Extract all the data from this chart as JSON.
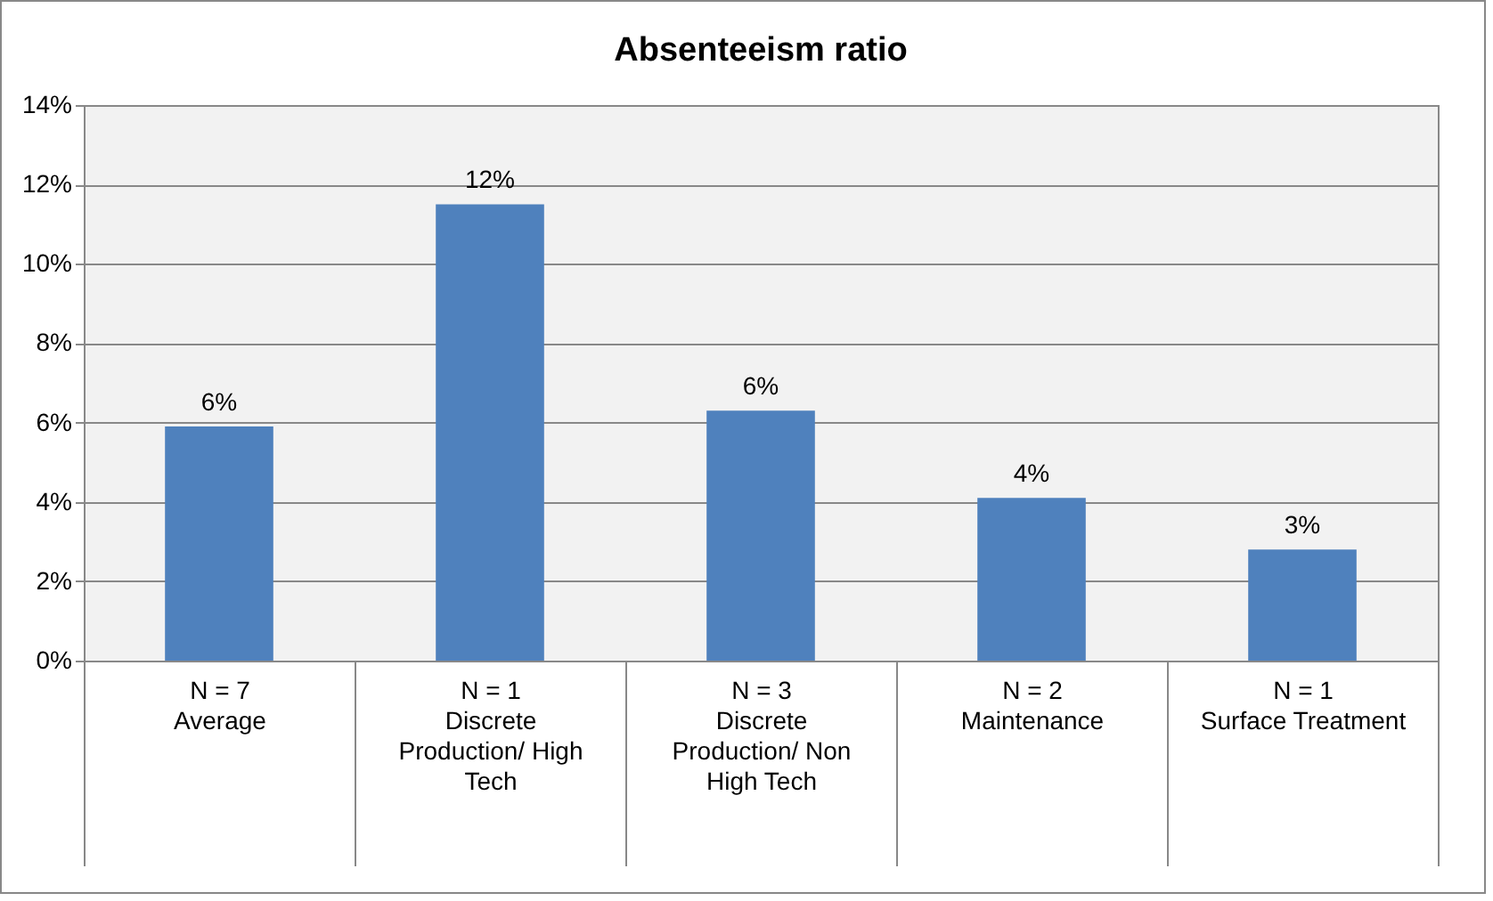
{
  "chart_data": {
    "type": "bar",
    "title": "Absenteeism ratio",
    "categories": [
      "Average",
      "Discrete Production/ High Tech",
      "Discrete Production/ Non High Tech",
      "Maintenance",
      "Surface Treatment"
    ],
    "values": [
      5.9,
      11.5,
      6.3,
      4.1,
      2.8
    ],
    "value_labels": [
      "6%",
      "12%",
      "6%",
      "4%",
      "3%"
    ],
    "color": "#4f81bd",
    "ylim": [
      0,
      14
    ],
    "yticks": [
      {
        "value": 0,
        "label": "0%"
      },
      {
        "value": 2,
        "label": "2%"
      },
      {
        "value": 4,
        "label": "4%"
      },
      {
        "value": 6,
        "label": "6%"
      },
      {
        "value": 8,
        "label": "8%"
      },
      {
        "value": 10,
        "label": "10%"
      },
      {
        "value": 12,
        "label": "12%"
      },
      {
        "value": 14,
        "label": "14%"
      }
    ],
    "annotations": [
      "N = 7",
      "N = 1",
      "N = 3",
      "N = 2",
      "N = 1"
    ],
    "grid": true
  }
}
